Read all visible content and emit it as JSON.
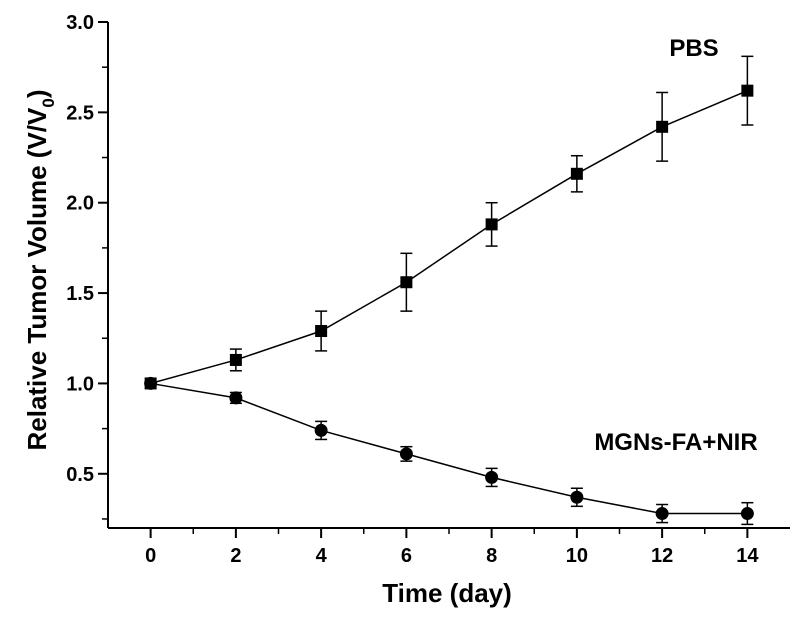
{
  "chart_data": {
    "type": "line",
    "xlabel": "Time (day)",
    "ylabel_main": "Relative Tumor Volume (V/V",
    "ylabel_sub": "0",
    "ylabel_close": ")",
    "xlim": [
      -1,
      15
    ],
    "ylim": [
      0.2,
      3.0
    ],
    "x_ticks": [
      0,
      2,
      4,
      6,
      8,
      10,
      12,
      14
    ],
    "x_tick_labels": [
      "0",
      "2",
      "4",
      "6",
      "8",
      "10",
      "12",
      "14"
    ],
    "y_ticks": [
      0.5,
      1.0,
      1.5,
      2.0,
      2.5,
      3.0
    ],
    "y_tick_labels": [
      "0.5",
      "1.0",
      "1.5",
      "2.0",
      "2.5",
      "3.0"
    ],
    "grid": false,
    "series": [
      {
        "name": "PBS",
        "marker": "square",
        "x": [
          0,
          2,
          4,
          6,
          8,
          10,
          12,
          14
        ],
        "values": [
          1.0,
          1.13,
          1.29,
          1.56,
          1.88,
          2.16,
          2.42,
          2.62
        ],
        "error": [
          0.0,
          0.06,
          0.11,
          0.16,
          0.12,
          0.1,
          0.19,
          0.19
        ]
      },
      {
        "name": "MGNs-FA+NIR",
        "marker": "circle",
        "x": [
          0,
          2,
          4,
          6,
          8,
          10,
          12,
          14
        ],
        "values": [
          1.0,
          0.92,
          0.74,
          0.61,
          0.48,
          0.37,
          0.28,
          0.28
        ],
        "error": [
          0.0,
          0.03,
          0.05,
          0.04,
          0.05,
          0.05,
          0.05,
          0.06
        ]
      }
    ]
  }
}
